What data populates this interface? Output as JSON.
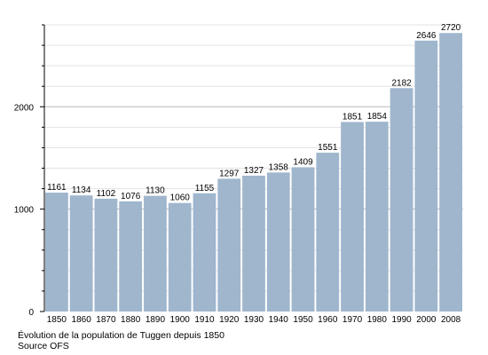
{
  "chart_data": {
    "type": "bar",
    "categories": [
      "1850",
      "1860",
      "1870",
      "1880",
      "1890",
      "1900",
      "1910",
      "1920",
      "1930",
      "1940",
      "1950",
      "1960",
      "1970",
      "1980",
      "1990",
      "2000",
      "2008"
    ],
    "values": [
      1161,
      1134,
      1102,
      1076,
      1130,
      1060,
      1155,
      1297,
      1327,
      1358,
      1409,
      1551,
      1851,
      1854,
      2182,
      2646,
      2720
    ],
    "ylim": [
      0,
      2800
    ],
    "yticks": [
      0,
      1000,
      2000
    ],
    "grid": true,
    "bar_color": "#9fb6cd",
    "grid_color": "#cccccc"
  },
  "caption": {
    "line1": "Évolution de la population de Tuggen depuis 1850",
    "line2": "Source OFS"
  }
}
